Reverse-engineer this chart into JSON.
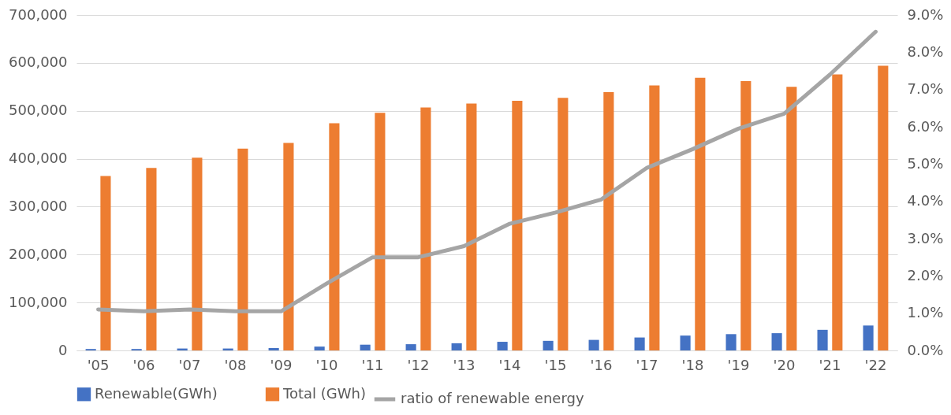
{
  "chart_data": {
    "type": "bar",
    "categories": [
      "'05",
      "'06",
      "'07",
      "'08",
      "'09",
      "'10",
      "'11",
      "'12",
      "'13",
      "'14",
      "'15",
      "'16",
      "'17",
      "'18",
      "'19",
      "'20",
      "'21",
      "'22"
    ],
    "series": [
      {
        "name": "Renewable(GWh)",
        "color": "#4472c4",
        "values": [
          3000,
          3000,
          4000,
          4000,
          5000,
          8000,
          12000,
          13000,
          15000,
          18000,
          20000,
          22000,
          27000,
          31000,
          34000,
          36000,
          43000,
          52000
        ]
      },
      {
        "name": "Total (GWh)",
        "color": "#ed7d31",
        "values": [
          364000,
          381000,
          402000,
          421000,
          433000,
          474000,
          496000,
          507000,
          515000,
          521000,
          527000,
          539000,
          553000,
          569000,
          562000,
          550000,
          576000,
          594000
        ]
      },
      {
        "name": "ratio of  renewable energy",
        "color": "#a5a5a5",
        "type": "line",
        "axis": "y2",
        "values": [
          1.1,
          1.05,
          1.1,
          1.05,
          1.05,
          1.8,
          2.5,
          2.5,
          2.8,
          3.4,
          3.7,
          4.05,
          4.9,
          5.4,
          5.95,
          6.35,
          7.4,
          8.55
        ]
      }
    ],
    "ylim": [
      0,
      700000
    ],
    "yticks": [
      0,
      {
        "value": 100000,
        "label": "100,000"
      },
      {
        "value": 200000,
        "label": "200,000"
      },
      {
        "value": 300000,
        "label": "300,000"
      },
      {
        "value": 400000,
        "label": "400,000"
      },
      {
        "value": 500000,
        "label": "500,000"
      },
      {
        "value": 600000,
        "label": "600,000"
      },
      {
        "value": 700000,
        "label": "700,000"
      }
    ],
    "y2lim": [
      0,
      9
    ],
    "y2ticks": [
      {
        "value": 0,
        "label": "0.0%"
      },
      {
        "value": 1,
        "label": "1.0%"
      },
      {
        "value": 2,
        "label": "2.0%"
      },
      {
        "value": 3,
        "label": "3.0%"
      },
      {
        "value": 4,
        "label": "4.0%"
      },
      {
        "value": 5,
        "label": "5.0%"
      },
      {
        "value": 6,
        "label": "6.0%"
      },
      {
        "value": 7,
        "label": "7.0%"
      },
      {
        "value": 8,
        "label": "8.0%"
      },
      {
        "value": 9,
        "label": "9.0%"
      }
    ],
    "grid": "y",
    "legend": "bottom",
    "marker": "none",
    "line_style": "solid"
  }
}
